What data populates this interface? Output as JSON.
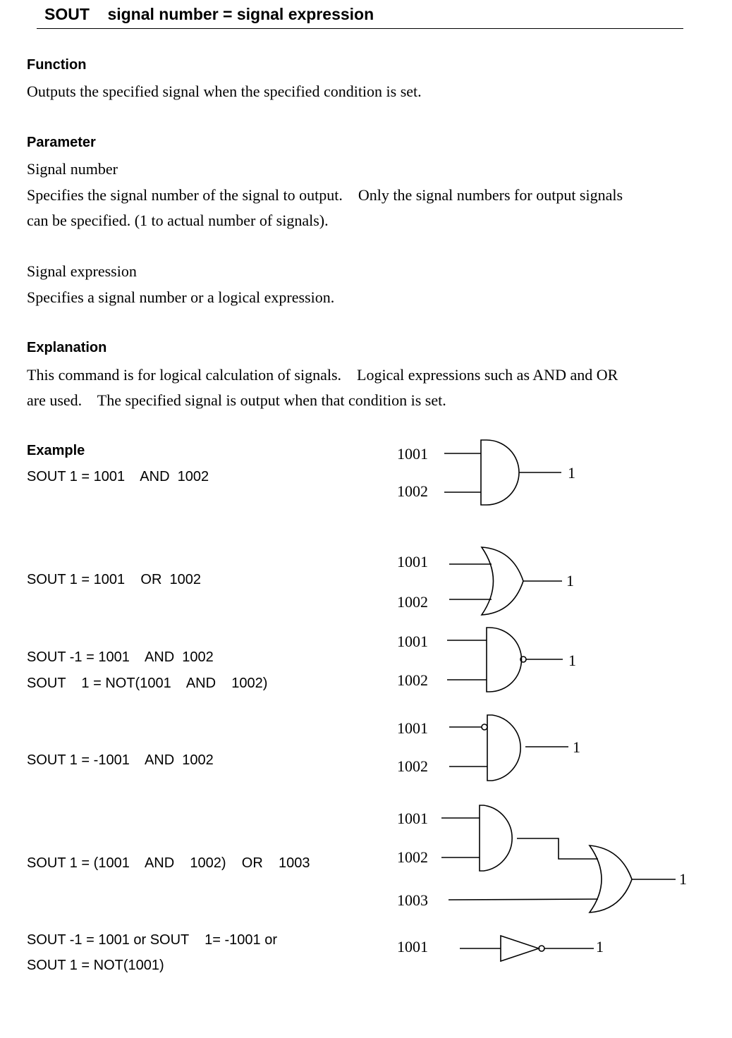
{
  "header": {
    "title": "SOUT    signal number = signal expression"
  },
  "function": {
    "heading": "Function",
    "text": "Outputs the specified signal when the specified condition is set."
  },
  "parameter": {
    "heading": "Parameter",
    "signal_number_label": "Signal number",
    "signal_number_line1": "Specifies the signal number of the signal to output.    Only the signal numbers for output signals",
    "signal_number_line2": "can be specified. (1 to actual number of signals).",
    "signal_expression_label": "Signal expression",
    "signal_expression_text": "Specifies a signal number or a logical expression."
  },
  "explanation": {
    "heading": "Explanation",
    "line1": "This command is for logical calculation of signals.    Logical expressions such as AND and OR",
    "line2": "are used.    The specified signal is output when that condition is set."
  },
  "example": {
    "heading": "Example",
    "items": [
      {
        "line1": "SOUT 1 = 1001    AND  1002"
      },
      {
        "line1": "SOUT 1 = 1001    OR  1002"
      },
      {
        "line1": "SOUT -1 = 1001    AND  1002",
        "line2": "SOUT    1 = NOT(1001    AND    1002)"
      },
      {
        "line1": "SOUT 1 = -1001    AND  1002"
      },
      {
        "line1": "SOUT 1 = (1001    AND    1002)    OR    1003"
      },
      {
        "line1": "SOUT -1 = 1001 or SOUT    1= -1001 or",
        "line2": "SOUT 1 = NOT(1001)"
      }
    ]
  },
  "diagrams": {
    "and_gate": {
      "in1": "1001",
      "in2": "1002",
      "out": "1"
    },
    "or_gate": {
      "in1": "1001",
      "in2": "1002",
      "out": "1"
    },
    "nand_gate": {
      "in1": "1001",
      "in2": "1002",
      "out": "1"
    },
    "and_inverted_input": {
      "in1": "1001",
      "in2": "1002",
      "out": "1"
    },
    "and_or_combo": {
      "in1": "1001",
      "in2": "1002",
      "in3": "1003",
      "out": "1"
    },
    "not_gate": {
      "in1": "1001",
      "out": "1"
    }
  }
}
